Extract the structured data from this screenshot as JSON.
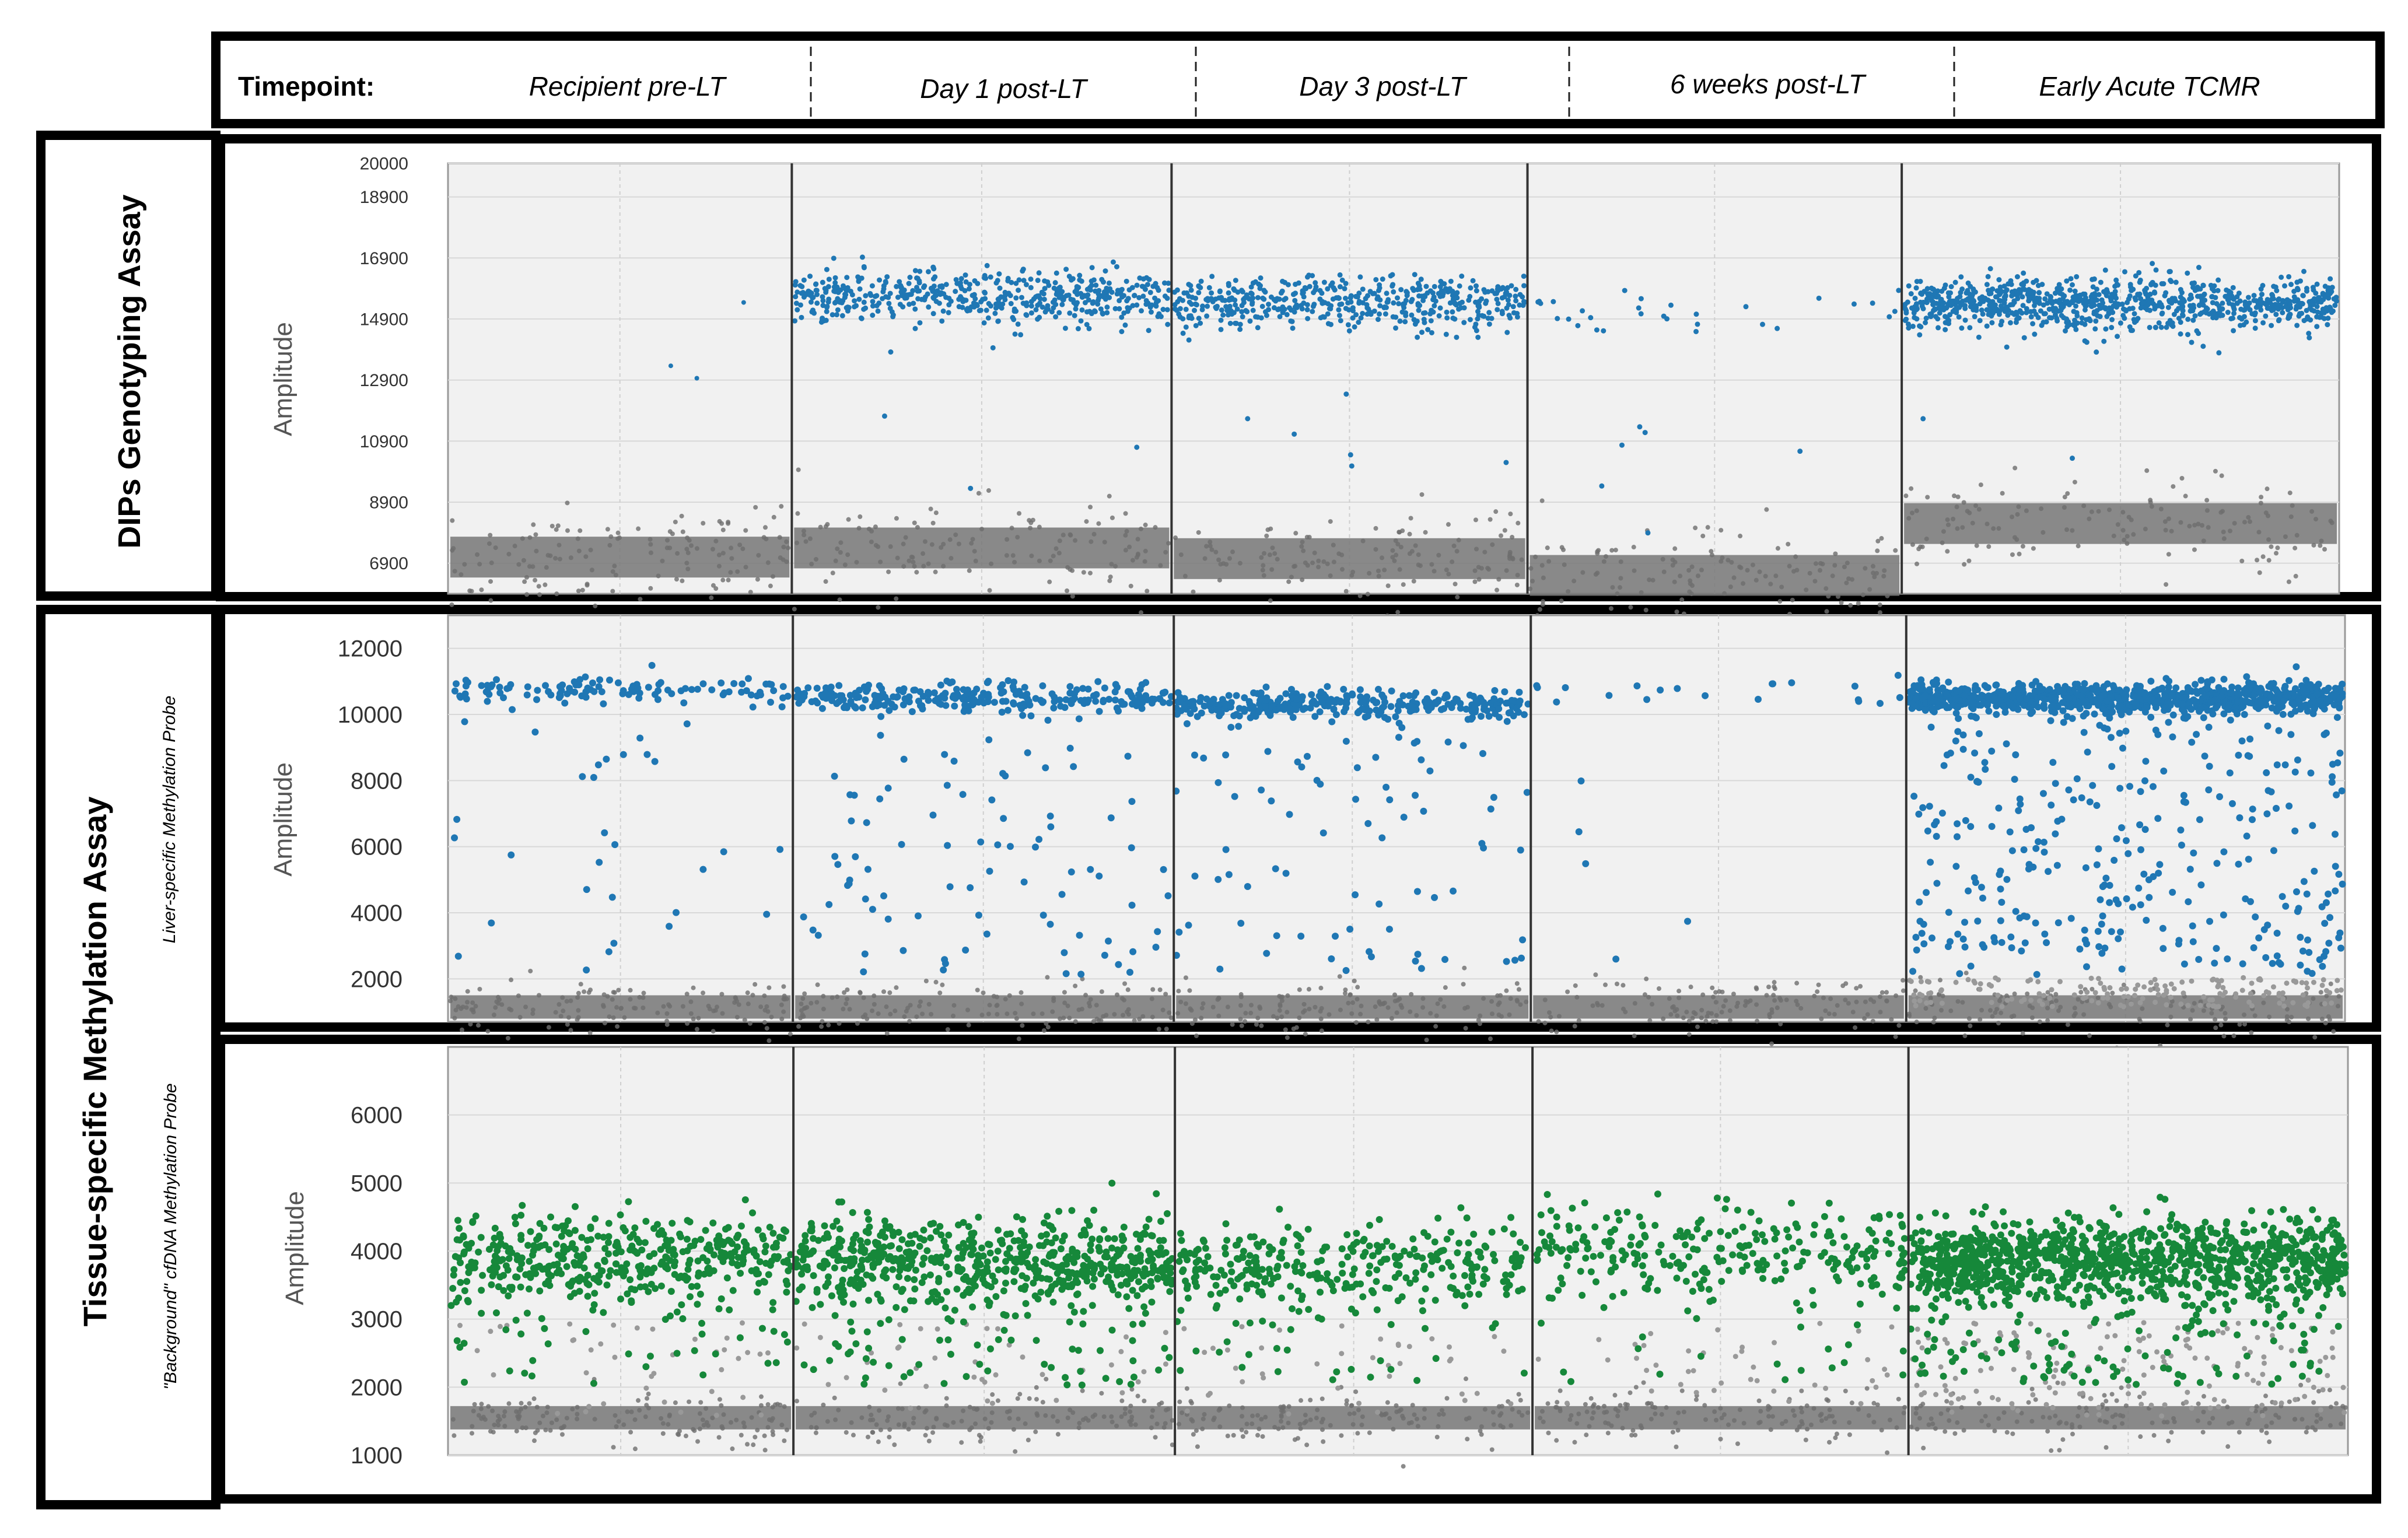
{
  "header": {
    "timepoint_label": "Timepoint:",
    "columns": [
      "Recipient pre-LT",
      "Day 1 post-LT",
      "Day 3 post-LT",
      "6 weeks post-LT",
      "Early Acute TCMR"
    ]
  },
  "row_labels": {
    "dips": "DIPs Genotyping Assay",
    "methylation": "Tissue-specific Methylation Assay",
    "liver_probe": "Liver-specific Methylation Probe",
    "background_probe": "\"Background\" cfDNA Methylation Probe"
  },
  "colors": {
    "blue": "#1f77b4",
    "green": "#16883a",
    "gray": "#6e6e6e",
    "plot_bg": "#f1f1f1",
    "frame": "#000000"
  },
  "chart_data": [
    {
      "type": "scatter",
      "name": "dips",
      "ylabel": "Amplitude",
      "ylim": [
        5900,
        20000
      ],
      "yticks": [
        6900,
        8900,
        10900,
        12900,
        14900,
        16900,
        18900,
        20000
      ],
      "ytick_labels": [
        "6900",
        "8900",
        "10900",
        "12900",
        "14900",
        "16900",
        "18900",
        "20000"
      ],
      "segments": [
        {
          "positive_color": "blue",
          "positive_level": null,
          "positive_count": 3,
          "negative_level": 7100
        },
        {
          "positive_color": "blue",
          "positive_level": 15600,
          "positive_count": 520,
          "negative_level": 7400
        },
        {
          "positive_color": "blue",
          "positive_level": 15400,
          "positive_count": 480,
          "negative_level": 7050
        },
        {
          "positive_color": "blue",
          "positive_level": 15000,
          "positive_count": 30,
          "negative_level": 6500
        },
        {
          "positive_color": "blue",
          "positive_level": 15400,
          "positive_count": 900,
          "negative_level": 8200
        }
      ]
    },
    {
      "type": "scatter",
      "name": "liver",
      "ylabel": "Amplitude",
      "ylim": [
        700,
        13000
      ],
      "yticks": [
        2000,
        4000,
        6000,
        8000,
        10000,
        12000
      ],
      "ytick_labels": [
        "2000",
        "4000",
        "6000",
        "8000",
        "10000",
        "12000"
      ],
      "segments": [
        {
          "positive_color": "blue",
          "positive_level": 10700,
          "positive_count": 110,
          "scatter_count": 30,
          "negative_level": 1150
        },
        {
          "positive_color": "blue",
          "positive_level": 10500,
          "positive_count": 260,
          "scatter_count": 90,
          "negative_level": 1150
        },
        {
          "positive_color": "blue",
          "positive_level": 10300,
          "positive_count": 300,
          "scatter_count": 80,
          "negative_level": 1150
        },
        {
          "positive_color": "blue",
          "positive_level": 10800,
          "positive_count": 20,
          "scatter_count": 5,
          "negative_level": 1150
        },
        {
          "positive_color": "blue",
          "positive_level": 10500,
          "positive_count": 900,
          "scatter_count": 320,
          "negative_level": 1150
        }
      ]
    },
    {
      "type": "scatter",
      "name": "background",
      "ylabel": "Amplitude",
      "ylim": [
        1000,
        7000
      ],
      "yticks": [
        1000,
        2000,
        3000,
        4000,
        5000,
        6000
      ],
      "ytick_labels": [
        "1000",
        "2000",
        "3000",
        "4000",
        "5000",
        "6000"
      ],
      "segments": [
        {
          "positive_color": "green",
          "positive_level": 3900,
          "positive_count": 420,
          "negative_level": 1550
        },
        {
          "positive_color": "green",
          "positive_level": 3850,
          "positive_count": 620,
          "negative_level": 1550
        },
        {
          "positive_color": "green",
          "positive_level": 3800,
          "positive_count": 300,
          "negative_level": 1550
        },
        {
          "positive_color": "green",
          "positive_level": 4000,
          "positive_count": 260,
          "negative_level": 1550
        },
        {
          "positive_color": "green",
          "positive_level": 3850,
          "positive_count": 1100,
          "negative_level": 1550
        }
      ]
    }
  ]
}
